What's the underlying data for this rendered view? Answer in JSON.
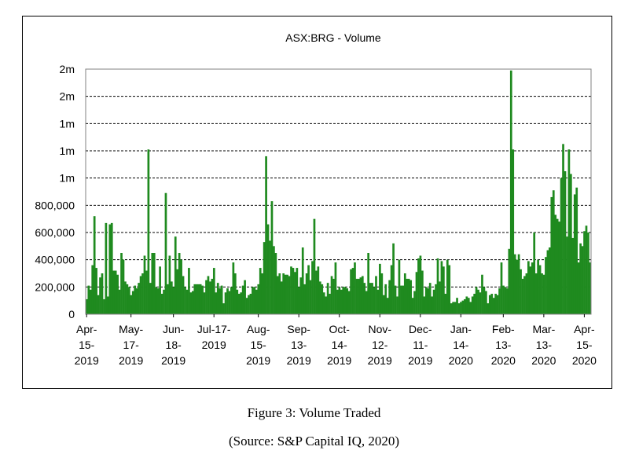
{
  "figure": {
    "caption": "Figure 3: Volume Traded",
    "source": "(Source: S&P Capital IQ, 2020)"
  },
  "colors": {
    "bar": "#1f8a1f",
    "bar_edge": "#106010",
    "grid": "#000000"
  },
  "chart_data": {
    "type": "bar",
    "title": "ASX:BRG - Volume",
    "xlabel": "",
    "ylabel": "",
    "ylim": [
      0,
      1800000
    ],
    "grid": true,
    "legend": "none",
    "y_ticks": [
      {
        "value": 0,
        "label": "0"
      },
      {
        "value": 200000,
        "label": "200,000"
      },
      {
        "value": 400000,
        "label": "400,000"
      },
      {
        "value": 600000,
        "label": "600,000"
      },
      {
        "value": 800000,
        "label": "800,000"
      },
      {
        "value": 1000000,
        "label": "1m"
      },
      {
        "value": 1200000,
        "label": "1m"
      },
      {
        "value": 1400000,
        "label": "1m"
      },
      {
        "value": 1600000,
        "label": "2m"
      },
      {
        "value": 1800000,
        "label": "2m"
      }
    ],
    "x_ticks": [
      {
        "index": 0,
        "lines": [
          "Apr-",
          "15-",
          "2019"
        ]
      },
      {
        "index": 23,
        "lines": [
          "May-",
          "17-",
          "2019"
        ]
      },
      {
        "index": 45,
        "lines": [
          "Jun-",
          "18-",
          "2019"
        ]
      },
      {
        "index": 66,
        "lines": [
          "Jul-17-",
          "2019"
        ]
      },
      {
        "index": 89,
        "lines": [
          "Aug-",
          "15-",
          "2019"
        ]
      },
      {
        "index": 110,
        "lines": [
          "Sep-",
          "13-",
          "2019"
        ]
      },
      {
        "index": 131,
        "lines": [
          "Oct-",
          "14-",
          "2019"
        ]
      },
      {
        "index": 152,
        "lines": [
          "Nov-",
          "12-",
          "2019"
        ]
      },
      {
        "index": 173,
        "lines": [
          "Dec-",
          "11-",
          "2019"
        ]
      },
      {
        "index": 194,
        "lines": [
          "Jan-",
          "14-",
          "2020"
        ]
      },
      {
        "index": 216,
        "lines": [
          "Feb-",
          "13-",
          "2020"
        ]
      },
      {
        "index": 237,
        "lines": [
          "Mar-",
          "13-",
          "2020"
        ]
      },
      {
        "index": 258,
        "lines": [
          "Apr-",
          "15-",
          "2020"
        ]
      }
    ],
    "values": [
      110000,
      210000,
      180000,
      360000,
      720000,
      340000,
      140000,
      270000,
      300000,
      110000,
      670000,
      130000,
      660000,
      670000,
      320000,
      320000,
      290000,
      180000,
      450000,
      400000,
      240000,
      220000,
      200000,
      140000,
      170000,
      210000,
      190000,
      230000,
      280000,
      300000,
      430000,
      320000,
      1210000,
      230000,
      450000,
      450000,
      200000,
      190000,
      350000,
      150000,
      180000,
      890000,
      220000,
      430000,
      240000,
      200000,
      570000,
      330000,
      450000,
      400000,
      280000,
      200000,
      180000,
      340000,
      160000,
      170000,
      220000,
      220000,
      220000,
      220000,
      210000,
      160000,
      250000,
      280000,
      240000,
      260000,
      340000,
      160000,
      230000,
      190000,
      210000,
      80000,
      160000,
      190000,
      170000,
      200000,
      380000,
      300000,
      180000,
      150000,
      160000,
      210000,
      250000,
      120000,
      140000,
      150000,
      200000,
      200000,
      180000,
      220000,
      340000,
      300000,
      530000,
      1160000,
      660000,
      540000,
      830000,
      500000,
      450000,
      280000,
      300000,
      240000,
      300000,
      290000,
      290000,
      280000,
      350000,
      340000,
      310000,
      340000,
      200000,
      270000,
      490000,
      220000,
      300000,
      360000,
      250000,
      390000,
      700000,
      320000,
      350000,
      240000,
      220000,
      160000,
      130000,
      230000,
      150000,
      280000,
      260000,
      380000,
      180000,
      200000,
      180000,
      200000,
      200000,
      190000,
      170000,
      330000,
      340000,
      380000,
      260000,
      260000,
      270000,
      280000,
      230000,
      170000,
      450000,
      230000,
      230000,
      200000,
      280000,
      180000,
      370000,
      300000,
      140000,
      220000,
      120000,
      250000,
      360000,
      520000,
      210000,
      130000,
      400000,
      210000,
      210000,
      300000,
      260000,
      260000,
      250000,
      120000,
      170000,
      310000,
      410000,
      430000,
      320000,
      130000,
      200000,
      190000,
      230000,
      130000,
      180000,
      220000,
      410000,
      240000,
      390000,
      350000,
      150000,
      400000,
      360000,
      80000,
      90000,
      90000,
      120000,
      80000,
      90000,
      100000,
      110000,
      130000,
      120000,
      90000,
      130000,
      150000,
      200000,
      180000,
      160000,
      290000,
      200000,
      170000,
      80000,
      140000,
      150000,
      120000,
      150000,
      140000,
      190000,
      380000,
      210000,
      200000,
      190000,
      480000,
      1790000,
      1210000,
      440000,
      400000,
      440000,
      330000,
      260000,
      280000,
      300000,
      390000,
      350000,
      380000,
      600000,
      300000,
      400000,
      360000,
      300000,
      290000,
      420000,
      470000,
      490000,
      860000,
      910000,
      730000,
      700000,
      680000,
      1000000,
      1250000,
      1050000,
      570000,
      1210000,
      1030000,
      560000,
      880000,
      930000,
      380000,
      520000,
      500000,
      610000,
      650000,
      600000,
      380000
    ]
  }
}
